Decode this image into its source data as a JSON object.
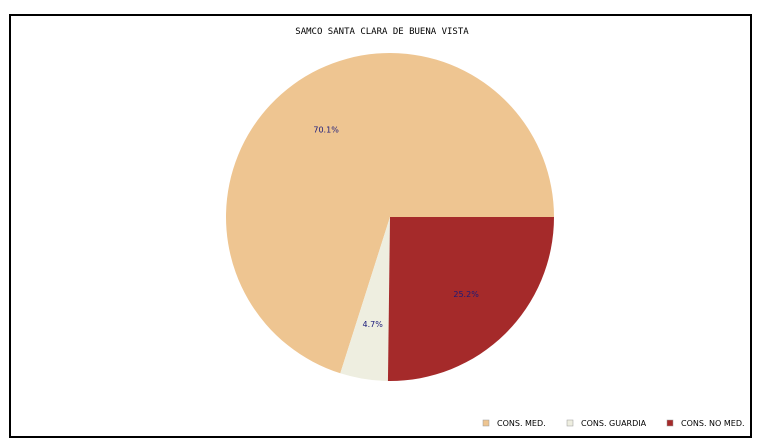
{
  "chart_data": {
    "type": "pie",
    "title": "SAMCO SANTA CLARA DE BUENA VISTA",
    "slices": [
      {
        "label": "CONS. MED.",
        "value": 70.1,
        "value_label": "70.1%",
        "color": "#EEC591"
      },
      {
        "label": "CONS. GUARDIA",
        "value": 4.7,
        "value_label": "4.7%",
        "color": "#EEEEE0"
      },
      {
        "label": "CONS. NO MED.",
        "value": 25.2,
        "value_label": "25.2%",
        "color": "#A52A2A"
      }
    ],
    "legend_position": "bottom-right"
  }
}
